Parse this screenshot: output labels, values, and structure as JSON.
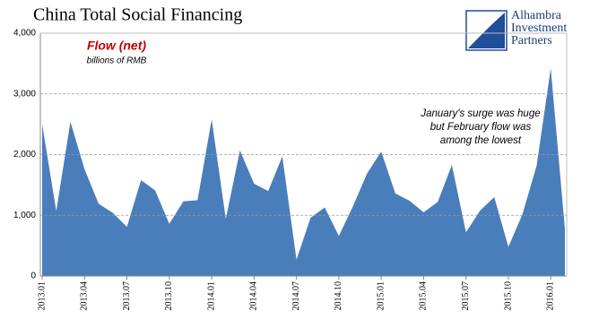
{
  "chart_data": {
    "type": "area",
    "title": "China Total Social Financing",
    "subtitle": "Flow (net)",
    "unit_label": "billions of RMB",
    "annotation": [
      "January's surge was huge",
      "but February flow was",
      "among the lowest"
    ],
    "logo": [
      "Alhambra",
      "Investment",
      "Partners"
    ],
    "categories": [
      "2013.01",
      null,
      null,
      "2013.04",
      null,
      null,
      "2013.07",
      null,
      null,
      "2013.10",
      null,
      null,
      "2014.01",
      null,
      null,
      "2014.04",
      null,
      null,
      "2014.07",
      null,
      null,
      "2014.10",
      null,
      null,
      "2015.01",
      null,
      null,
      "2015.04",
      null,
      null,
      "2015.07",
      null,
      null,
      "2015.10",
      null,
      null,
      "2016.01",
      null
    ],
    "series": [
      {
        "name": "Flow (net)",
        "color": "#4a7ebb",
        "values": [
          2500,
          1070,
          2540,
          1760,
          1190,
          1040,
          810,
          1580,
          1410,
          860,
          1230,
          1250,
          2580,
          940,
          2070,
          1520,
          1400,
          1970,
          270,
          960,
          1130,
          660,
          1150,
          1690,
          2050,
          1360,
          1240,
          1050,
          1220,
          1830,
          720,
          1080,
          1300,
          480,
          1020,
          1820,
          3420,
          780
        ]
      }
    ],
    "ylim": [
      0,
      4000
    ],
    "yticks": [
      0,
      {
        "value": 1000,
        "label": "1,000"
      },
      {
        "value": 2000,
        "label": "2,000"
      },
      {
        "value": 3000,
        "label": "3,000"
      },
      {
        "value": 4000,
        "label": "4,000"
      }
    ],
    "grid": true
  }
}
